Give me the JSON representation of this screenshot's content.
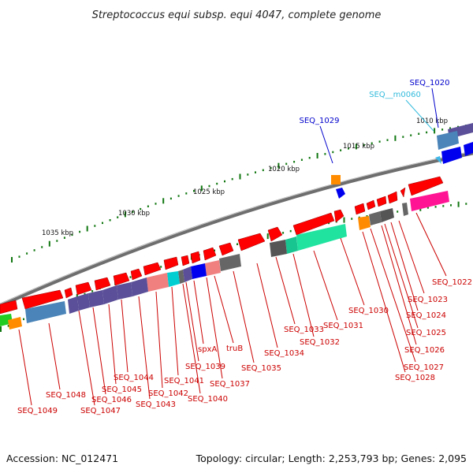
{
  "title": "Streptococcus equi subsp. equi 4047, complete genome",
  "footer": {
    "accession": "Accession: NC_012471",
    "summary": "Topology: circular; Length: 2,253,793 bp; Genes: 2,095"
  },
  "colors": {
    "cds_forward": "#ff0000",
    "label_red": "#cc0000",
    "label_blue": "#0000cc",
    "label_cyan": "#33bbdd",
    "backbone": "#777777",
    "tick": "#117711",
    "slate": "#5a4f98",
    "steel": "#4a84b8",
    "grey": "#555555",
    "pink": "#ff1493",
    "salmon": "#f08080",
    "orange": "#ff8c00",
    "mint": "#20e3a0",
    "cyan": "#00ced1",
    "blue": "#0000ee",
    "green": "#22cc22"
  },
  "tick_labels": [
    {
      "label": "1010 kbp",
      "kbp": 1010
    },
    {
      "label": "1015 kbp",
      "kbp": 1015
    },
    {
      "label": "1020 kbp",
      "kbp": 1020
    },
    {
      "label": "1025 kbp",
      "kbp": 1025
    },
    {
      "label": "1030 kbp",
      "kbp": 1030
    },
    {
      "label": "1035 kbp",
      "kbp": 1035
    }
  ],
  "gene_labels": [
    {
      "name": "SEQ_1020",
      "color": "blue"
    },
    {
      "name": "SEQ__m0060",
      "color": "cyan"
    },
    {
      "name": "SEQ_1029",
      "color": "blue"
    },
    {
      "name": "SEQ_1022",
      "color": "red"
    },
    {
      "name": "SEQ_1023",
      "color": "red"
    },
    {
      "name": "SEQ_1024",
      "color": "red"
    },
    {
      "name": "SEQ_1025",
      "color": "red"
    },
    {
      "name": "SEQ_1026",
      "color": "red"
    },
    {
      "name": "SEQ_1027",
      "color": "red"
    },
    {
      "name": "SEQ_1028",
      "color": "red"
    },
    {
      "name": "SEQ_1030",
      "color": "red"
    },
    {
      "name": "SEQ_1031",
      "color": "red"
    },
    {
      "name": "SEQ_1032",
      "color": "red"
    },
    {
      "name": "SEQ_1033",
      "color": "red"
    },
    {
      "name": "SEQ_1034",
      "color": "red"
    },
    {
      "name": "SEQ_1035",
      "color": "red"
    },
    {
      "name": "truB",
      "color": "red"
    },
    {
      "name": "SEQ_1037",
      "color": "red"
    },
    {
      "name": "spxA",
      "color": "red"
    },
    {
      "name": "SEQ_1039",
      "color": "red"
    },
    {
      "name": "SEQ_1040",
      "color": "red"
    },
    {
      "name": "SEQ_1041",
      "color": "red"
    },
    {
      "name": "SEQ_1042",
      "color": "red"
    },
    {
      "name": "SEQ_1043",
      "color": "red"
    },
    {
      "name": "SEQ_1044",
      "color": "red"
    },
    {
      "name": "SEQ_1045",
      "color": "red"
    },
    {
      "name": "SEQ_1046",
      "color": "red"
    },
    {
      "name": "SEQ_1047",
      "color": "red"
    },
    {
      "name": "SEQ_1048",
      "color": "red"
    },
    {
      "name": "SEQ_1049",
      "color": "red"
    }
  ]
}
